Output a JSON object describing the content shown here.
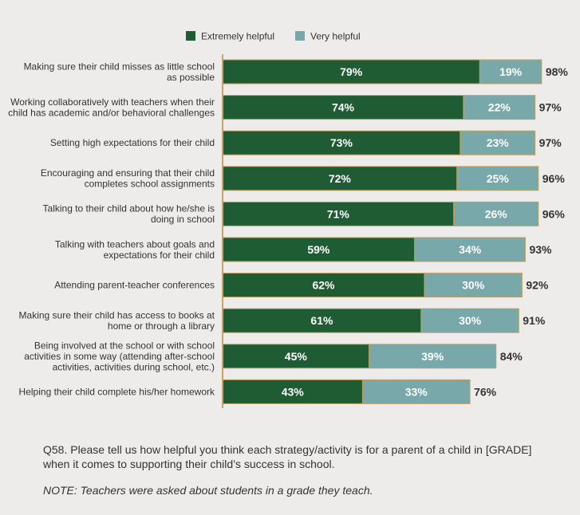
{
  "chart_data": {
    "type": "bar",
    "orientation": "horizontal",
    "stacked": true,
    "categories": [
      [
        "Making sure their child misses as little school",
        "as possible"
      ],
      [
        "Working collaboratively with teachers when their",
        "child has academic and/or behavioral challenges"
      ],
      [
        "Setting high expectations for their child"
      ],
      [
        "Encouraging and ensuring that their child",
        "completes school assignments"
      ],
      [
        "Talking to their child about how he/she is",
        "doing in school"
      ],
      [
        "Talking with teachers about goals and",
        "expectations for their child"
      ],
      [
        "Attending parent-teacher conferences"
      ],
      [
        "Making sure their child has access to books at",
        "home or through a library"
      ],
      [
        "Being involved at the school or with school",
        "activities in some way (attending after-school",
        "activities, activities during school, etc.)"
      ],
      [
        "Helping their child complete his/her homework"
      ]
    ],
    "series": [
      {
        "name": "Extremely helpful",
        "color": "#1f5c34",
        "values": [
          79,
          74,
          73,
          72,
          71,
          59,
          62,
          61,
          45,
          43
        ]
      },
      {
        "name": "Very helpful",
        "color": "#79a8aa",
        "values": [
          19,
          22,
          23,
          25,
          26,
          34,
          30,
          30,
          39,
          33
        ]
      }
    ],
    "totals": [
      98,
      97,
      97,
      96,
      96,
      93,
      92,
      91,
      84,
      76
    ],
    "value_suffix": "%",
    "xlim": [
      0,
      100
    ],
    "grid": false,
    "legend_position": "top-center"
  },
  "footnotes": {
    "question": "Q58. Please tell us how helpful you think each strategy/activity is for a parent of a child in [GRADE] when it comes to supporting their child’s success in school.",
    "note": "NOTE: Teachers were asked about students in a grade they teach."
  }
}
